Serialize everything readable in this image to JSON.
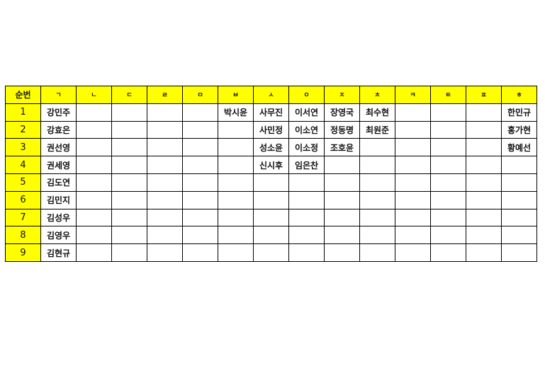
{
  "colors": {
    "header_bg": "#ffff00",
    "border": "#000000"
  },
  "table": {
    "headers": [
      "순번",
      "ㄱ",
      "ㄴ",
      "ㄷ",
      "ㄹ",
      "ㅁ",
      "ㅂ",
      "ㅅ",
      "ㅇ",
      "ㅈ",
      "ㅊ",
      "ㅋ",
      "ㅌ",
      "ㅍ",
      "ㅎ"
    ],
    "rows": [
      {
        "num": "1",
        "cells": [
          "강민주",
          "",
          "",
          "",
          "",
          "박시윤",
          "사무진",
          "이서연",
          "장영국",
          "최수현",
          "",
          "",
          "",
          "한민규"
        ]
      },
      {
        "num": "2",
        "cells": [
          "강효은",
          "",
          "",
          "",
          "",
          "",
          "사민정",
          "이소연",
          "정동명",
          "최원준",
          "",
          "",
          "",
          "홍가현"
        ]
      },
      {
        "num": "3",
        "cells": [
          "권선영",
          "",
          "",
          "",
          "",
          "",
          "성소윤",
          "이소정",
          "조호윤",
          "",
          "",
          "",
          "",
          "황예선"
        ]
      },
      {
        "num": "4",
        "cells": [
          "권세영",
          "",
          "",
          "",
          "",
          "",
          "신시후",
          "임은찬",
          "",
          "",
          "",
          "",
          "",
          ""
        ]
      },
      {
        "num": "5",
        "cells": [
          "김도연",
          "",
          "",
          "",
          "",
          "",
          "",
          "",
          "",
          "",
          "",
          "",
          "",
          ""
        ]
      },
      {
        "num": "6",
        "cells": [
          "김민지",
          "",
          "",
          "",
          "",
          "",
          "",
          "",
          "",
          "",
          "",
          "",
          "",
          ""
        ]
      },
      {
        "num": "7",
        "cells": [
          "김성우",
          "",
          "",
          "",
          "",
          "",
          "",
          "",
          "",
          "",
          "",
          "",
          "",
          ""
        ]
      },
      {
        "num": "8",
        "cells": [
          "김영우",
          "",
          "",
          "",
          "",
          "",
          "",
          "",
          "",
          "",
          "",
          "",
          "",
          ""
        ]
      },
      {
        "num": "9",
        "cells": [
          "김현규",
          "",
          "",
          "",
          "",
          "",
          "",
          "",
          "",
          "",
          "",
          "",
          "",
          ""
        ]
      }
    ]
  }
}
